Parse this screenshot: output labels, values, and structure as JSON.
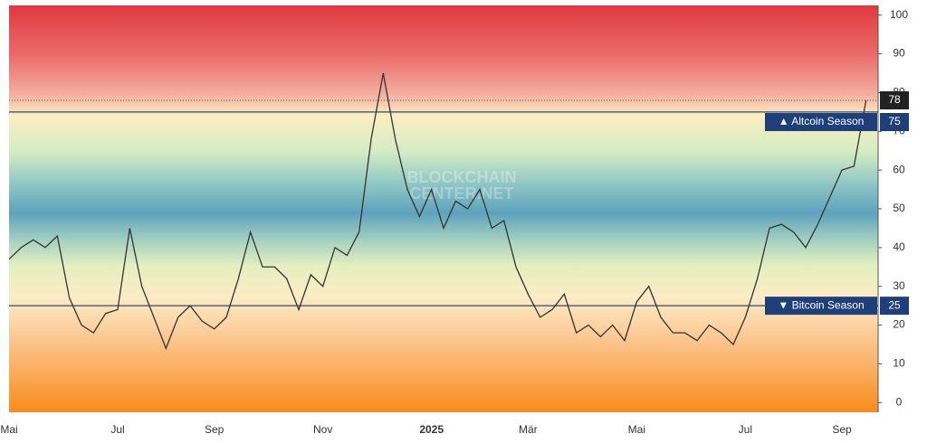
{
  "chart_data": {
    "type": "line",
    "watermark": [
      "BLOCKCHAIN",
      "CENTER.NET"
    ],
    "categories": [
      "Mai",
      null,
      null,
      null,
      null,
      null,
      null,
      null,
      null,
      "Jul",
      null,
      null,
      null,
      null,
      null,
      null,
      null,
      "Sep",
      null,
      null,
      null,
      null,
      null,
      null,
      null,
      null,
      "Nov",
      null,
      null,
      null,
      null,
      null,
      null,
      null,
      null,
      "2025",
      null,
      null,
      null,
      null,
      null,
      null,
      null,
      "Mär",
      null,
      null,
      null,
      null,
      null,
      null,
      null,
      null,
      "Mai",
      null,
      null,
      null,
      null,
      null,
      null,
      null,
      null,
      "Jul",
      null,
      null,
      null,
      null,
      null,
      null,
      null,
      "Sep",
      null,
      null
    ],
    "values": [
      37,
      40,
      42,
      40,
      43,
      27,
      20,
      18,
      23,
      24,
      45,
      30,
      22,
      14,
      22,
      25,
      21,
      19,
      22,
      32,
      44,
      35,
      35,
      32,
      24,
      33,
      30,
      40,
      38,
      44,
      68,
      85,
      68,
      55,
      48,
      55,
      45,
      52,
      50,
      55,
      45,
      47,
      35,
      28,
      22,
      24,
      28,
      18,
      20,
      17,
      20,
      16,
      26,
      30,
      22,
      18,
      18,
      16,
      20,
      18,
      15,
      22,
      32,
      45,
      46,
      44,
      40,
      46,
      53,
      60,
      61,
      78
    ],
    "color": "#333333",
    "ylim": [
      -2.5,
      102.5
    ],
    "yticks": [
      0,
      10,
      20,
      30,
      40,
      50,
      60,
      70,
      80,
      90,
      100
    ],
    "thresholds": [
      {
        "label": "▲ Altcoin Season",
        "value": 75
      },
      {
        "label": "▼ Bitcoin Season",
        "value": 25
      }
    ],
    "current": 78
  }
}
